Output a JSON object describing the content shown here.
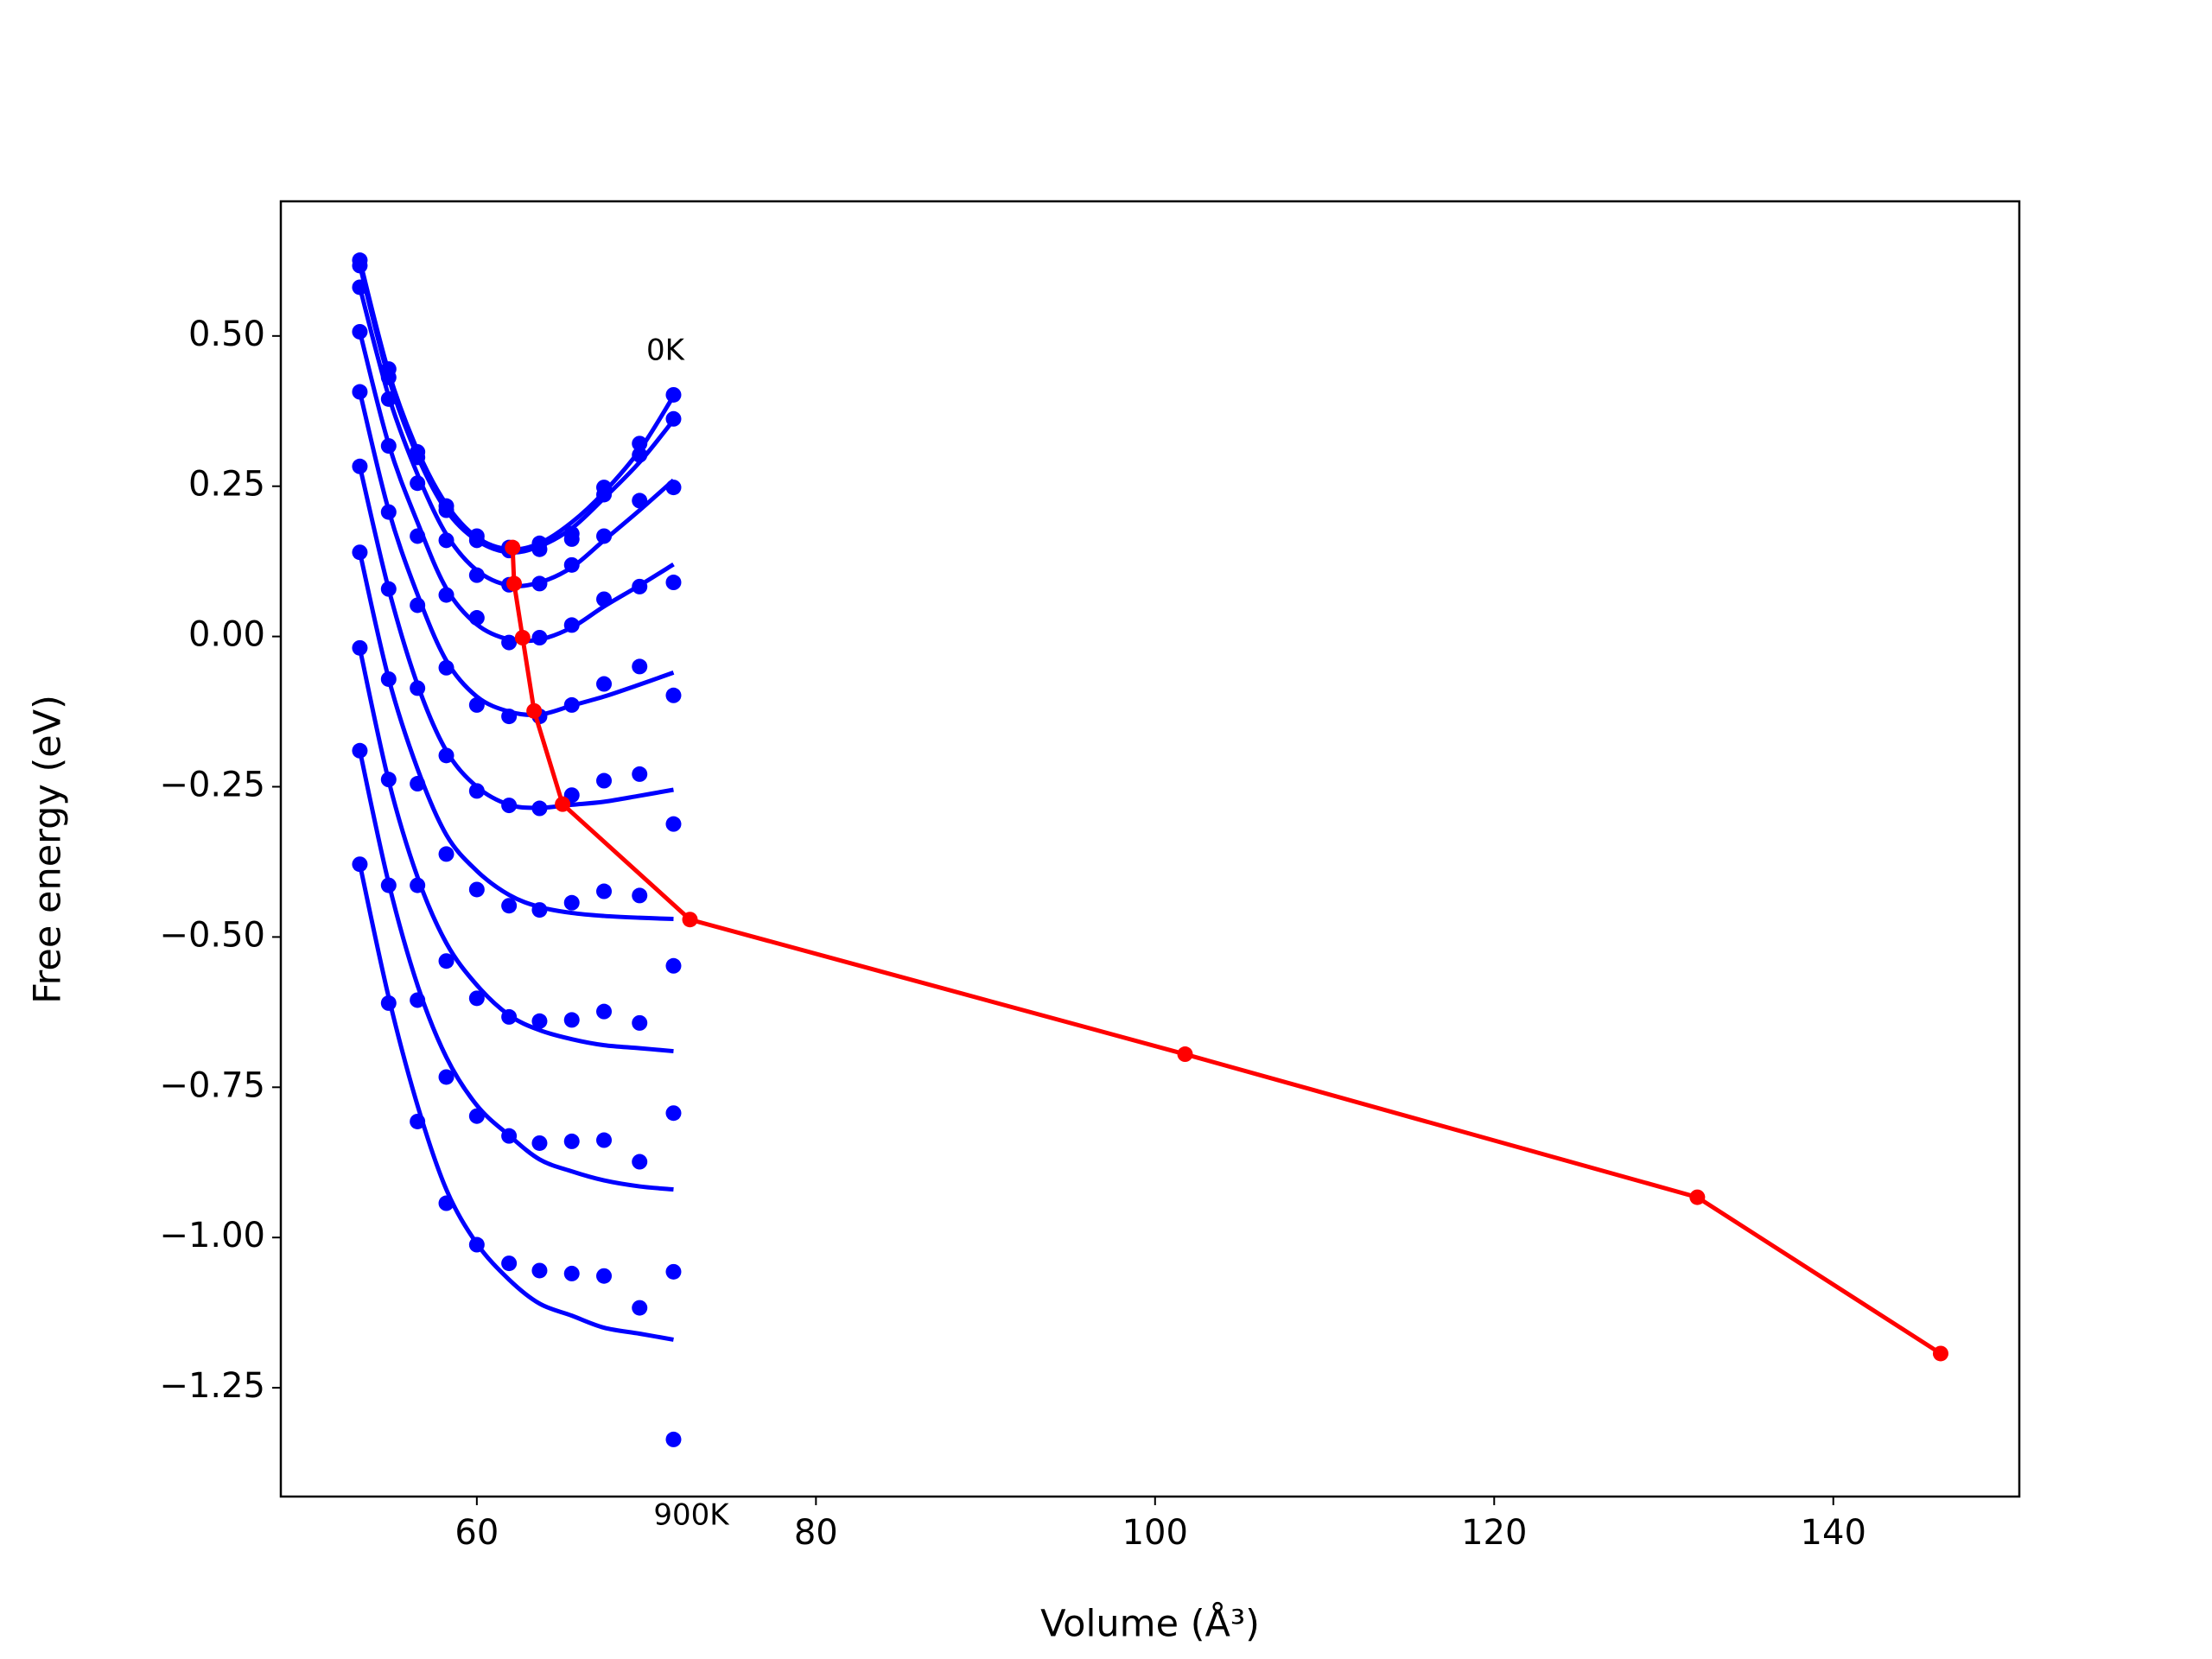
{
  "chart_data": {
    "type": "line",
    "xlabel": "Volume (Å³)",
    "ylabel": "Free energy (eV)",
    "xlim": [
      48.44,
      150.97
    ],
    "ylim": [
      -1.431,
      0.724
    ],
    "xticks": [
      60,
      80,
      100,
      120,
      140
    ],
    "yticks": [
      {
        "value": 0.5,
        "label": "0.50"
      },
      {
        "value": 0.25,
        "label": "0.25"
      },
      {
        "value": 0,
        "label": "0.00"
      },
      {
        "value": -0.25,
        "label": "−0.25"
      },
      {
        "value": -0.5,
        "label": "−0.50"
      },
      {
        "value": -0.75,
        "label": "−0.75"
      },
      {
        "value": -1,
        "label": "−1.00"
      },
      {
        "value": -1.25,
        "label": "−1.25"
      }
    ],
    "annotations": [
      "0K",
      "900K"
    ],
    "x": [
      53.1,
      54.8,
      56.5,
      58.2,
      60.0,
      61.9,
      63.7,
      65.6,
      67.5,
      69.6,
      71.6
    ],
    "series": [
      {
        "color": "#0000ff",
        "marker": true,
        "line": false,
        "values": [
          0.626,
          0.445,
          0.307,
          0.217,
          0.167,
          0.148,
          0.155,
          0.171,
          0.248,
          0.321,
          0.402
        ]
      },
      {
        "color": "#0000ff",
        "marker": true,
        "line": false,
        "values": [
          0.617,
          0.431,
          0.298,
          0.21,
          0.16,
          0.143,
          0.145,
          0.162,
          0.236,
          0.302,
          0.362
        ]
      },
      {
        "color": "#0000ff",
        "marker": true,
        "line": false,
        "values": [
          0.581,
          0.395,
          0.255,
          0.16,
          0.102,
          0.086,
          0.088,
          0.119,
          0.167,
          0.226,
          0.248
        ]
      },
      {
        "color": "#0000ff",
        "marker": true,
        "line": false,
        "values": [
          0.507,
          0.317,
          0.167,
          0.069,
          0.031,
          -0.01,
          -0.002,
          0.019,
          0.062,
          0.083,
          0.09
        ]
      },
      {
        "color": "#0000ff",
        "marker": true,
        "line": false,
        "values": [
          0.407,
          0.207,
          0.052,
          -0.052,
          -0.114,
          -0.133,
          -0.133,
          -0.114,
          -0.079,
          -0.05,
          -0.098
        ]
      },
      {
        "color": "#0000ff",
        "marker": true,
        "line": false,
        "values": [
          0.283,
          0.079,
          -0.086,
          -0.198,
          -0.257,
          -0.281,
          -0.286,
          -0.264,
          -0.24,
          -0.229,
          -0.312
        ]
      },
      {
        "color": "#0000ff",
        "marker": true,
        "line": false,
        "values": [
          0.14,
          -0.071,
          -0.245,
          -0.362,
          -0.421,
          -0.448,
          -0.455,
          -0.443,
          -0.424,
          -0.431,
          -0.548
        ]
      },
      {
        "color": "#0000ff",
        "marker": true,
        "line": false,
        "values": [
          -0.019,
          -0.238,
          -0.414,
          -0.54,
          -0.602,
          -0.633,
          -0.64,
          -0.638,
          -0.624,
          -0.643,
          -0.793
        ]
      },
      {
        "color": "#0000ff",
        "marker": true,
        "line": false,
        "values": [
          -0.19,
          -0.414,
          -0.605,
          -0.733,
          -0.798,
          -0.831,
          -0.843,
          -0.84,
          -0.838,
          -0.874,
          -1.057
        ]
      },
      {
        "color": "#0000ff",
        "marker": true,
        "line": false,
        "values": [
          -0.379,
          -0.61,
          -0.807,
          -0.943,
          -1.012,
          -1.043,
          -1.055,
          -1.06,
          -1.064,
          -1.117,
          -1.336
        ]
      },
      {
        "color": "#0000ff",
        "marker": false,
        "line": true,
        "values": [
          0.626,
          0.44,
          0.31,
          0.22,
          0.165,
          0.145,
          0.155,
          0.19,
          0.24,
          0.31,
          0.4
        ]
      },
      {
        "color": "#0000ff",
        "marker": false,
        "line": true,
        "values": [
          0.617,
          0.43,
          0.3,
          0.21,
          0.16,
          0.14,
          0.15,
          0.18,
          0.23,
          0.29,
          0.36
        ]
      },
      {
        "color": "#0000ff",
        "marker": false,
        "line": true,
        "values": [
          0.581,
          0.4,
          0.27,
          0.17,
          0.11,
          0.085,
          0.09,
          0.115,
          0.16,
          0.21,
          0.26
        ]
      },
      {
        "color": "#0000ff",
        "marker": false,
        "line": true,
        "values": [
          0.507,
          0.32,
          0.19,
          0.08,
          0.02,
          -0.005,
          -0.005,
          0.015,
          0.05,
          0.085,
          0.12
        ]
      },
      {
        "color": "#0000ff",
        "marker": false,
        "line": true,
        "values": [
          0.407,
          0.21,
          0.07,
          -0.04,
          -0.1,
          -0.125,
          -0.13,
          -0.115,
          -0.1,
          -0.08,
          -0.06
        ]
      },
      {
        "color": "#0000ff",
        "marker": false,
        "line": true,
        "values": [
          0.283,
          0.079,
          -0.08,
          -0.19,
          -0.25,
          -0.28,
          -0.285,
          -0.28,
          -0.275,
          -0.265,
          -0.255
        ]
      },
      {
        "color": "#0000ff",
        "marker": false,
        "line": true,
        "values": [
          0.14,
          -0.07,
          -0.22,
          -0.33,
          -0.39,
          -0.43,
          -0.45,
          -0.46,
          -0.465,
          -0.468,
          -0.47
        ]
      },
      {
        "color": "#0000ff",
        "marker": false,
        "line": true,
        "values": [
          -0.02,
          -0.24,
          -0.4,
          -0.51,
          -0.58,
          -0.63,
          -0.655,
          -0.67,
          -0.68,
          -0.685,
          -0.69
        ]
      },
      {
        "color": "#0000ff",
        "marker": false,
        "line": true,
        "values": [
          -0.19,
          -0.41,
          -0.58,
          -0.7,
          -0.78,
          -0.83,
          -0.87,
          -0.89,
          -0.905,
          -0.915,
          -0.92
        ]
      },
      {
        "color": "#0000ff",
        "marker": false,
        "line": true,
        "values": [
          -0.379,
          -0.6,
          -0.78,
          -0.92,
          -1.01,
          -1.07,
          -1.11,
          -1.13,
          -1.15,
          -1.16,
          -1.17
        ]
      },
      {
        "color": "#ff0000",
        "marker": true,
        "line": true,
        "straight": true,
        "x": [
          62.11,
          62.2,
          62.7,
          63.38,
          65.06,
          72.57,
          101.77,
          131.98,
          146.33
        ],
        "values": [
          0.148,
          0.088,
          -0.002,
          -0.124,
          -0.279,
          -0.471,
          -0.695,
          -0.933,
          -1.193
        ]
      }
    ]
  }
}
